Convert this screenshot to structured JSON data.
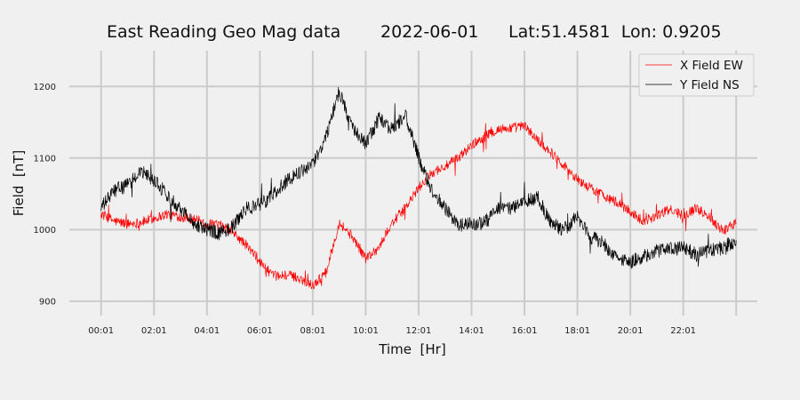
{
  "chart_data": {
    "type": "line",
    "title_parts": [
      "East Reading Geo Mag data",
      "2022-06-01",
      "Lat:51.4581  Lon: 0.9205"
    ],
    "xlabel": "Time  [Hr]",
    "ylabel": "Field  [nT]",
    "x_unit": "hours since 00:01",
    "xlim": [
      -1.2,
      24.8
    ],
    "ylim": [
      880,
      1250
    ],
    "x_ticks": [
      {
        "value": 0,
        "label": "00:01"
      },
      {
        "value": 2,
        "label": "02:01"
      },
      {
        "value": 4,
        "label": "04:01"
      },
      {
        "value": 6,
        "label": "06:01"
      },
      {
        "value": 8,
        "label": "08:01"
      },
      {
        "value": 10,
        "label": "10:01"
      },
      {
        "value": 12,
        "label": "12:01"
      },
      {
        "value": 14,
        "label": "14:01"
      },
      {
        "value": 16,
        "label": "16:01"
      },
      {
        "value": 18,
        "label": "18:01"
      },
      {
        "value": 20,
        "label": "20:01"
      },
      {
        "value": 22,
        "label": "22:01"
      }
    ],
    "x_grid": [
      0,
      2,
      4,
      6,
      8,
      10,
      12,
      14,
      16,
      18,
      20,
      22,
      24
    ],
    "y_ticks": [
      900,
      1000,
      1100,
      1200
    ],
    "grid": true,
    "legend_position": "top-right",
    "series": [
      {
        "name": "X Field EW",
        "color": "#ff0000",
        "points": [
          [
            0,
            1022
          ],
          [
            0.5,
            1012
          ],
          [
            1,
            1008
          ],
          [
            1.5,
            1010
          ],
          [
            2,
            1016
          ],
          [
            2.5,
            1022
          ],
          [
            3,
            1018
          ],
          [
            3.5,
            1015
          ],
          [
            4,
            1008
          ],
          [
            4.5,
            1006
          ],
          [
            5,
            995
          ],
          [
            5.5,
            978
          ],
          [
            6,
            955
          ],
          [
            6.5,
            935
          ],
          [
            7,
            937
          ],
          [
            7.5,
            932
          ],
          [
            8,
            922
          ],
          [
            8.5,
            940
          ],
          [
            9,
            1010
          ],
          [
            9.5,
            990
          ],
          [
            10,
            960
          ],
          [
            10.5,
            975
          ],
          [
            11,
            1010
          ],
          [
            11.5,
            1030
          ],
          [
            12,
            1058
          ],
          [
            12.5,
            1080
          ],
          [
            13,
            1088
          ],
          [
            13.5,
            1100
          ],
          [
            14,
            1118
          ],
          [
            14.5,
            1130
          ],
          [
            15,
            1140
          ],
          [
            15.5,
            1142
          ],
          [
            16,
            1145
          ],
          [
            16.5,
            1125
          ],
          [
            17,
            1108
          ],
          [
            17.5,
            1090
          ],
          [
            18,
            1070
          ],
          [
            18.5,
            1058
          ],
          [
            19,
            1048
          ],
          [
            19.5,
            1038
          ],
          [
            20,
            1025
          ],
          [
            20.5,
            1012
          ],
          [
            21,
            1020
          ],
          [
            21.5,
            1028
          ],
          [
            22,
            1020
          ],
          [
            22.5,
            1030
          ],
          [
            23,
            1018
          ],
          [
            23.5,
            998
          ],
          [
            24,
            1010
          ]
        ]
      },
      {
        "name": "Y Field NS",
        "color": "#000000",
        "points": [
          [
            0,
            1030
          ],
          [
            0.5,
            1055
          ],
          [
            1,
            1062
          ],
          [
            1.5,
            1082
          ],
          [
            2,
            1070
          ],
          [
            2.5,
            1048
          ],
          [
            3,
            1030
          ],
          [
            3.5,
            1010
          ],
          [
            4,
            1000
          ],
          [
            4.5,
            995
          ],
          [
            5,
            1005
          ],
          [
            5.5,
            1030
          ],
          [
            6,
            1035
          ],
          [
            6.5,
            1048
          ],
          [
            7,
            1068
          ],
          [
            7.5,
            1080
          ],
          [
            8,
            1090
          ],
          [
            8.5,
            1130
          ],
          [
            9,
            1195
          ],
          [
            9.5,
            1140
          ],
          [
            10,
            1120
          ],
          [
            10.5,
            1155
          ],
          [
            11,
            1140
          ],
          [
            11.5,
            1160
          ],
          [
            12,
            1100
          ],
          [
            12.5,
            1055
          ],
          [
            13,
            1030
          ],
          [
            13.5,
            1005
          ],
          [
            14,
            1008
          ],
          [
            14.5,
            1010
          ],
          [
            15,
            1028
          ],
          [
            15.5,
            1030
          ],
          [
            16,
            1040
          ],
          [
            16.5,
            1045
          ],
          [
            17,
            1008
          ],
          [
            17.5,
            1000
          ],
          [
            18,
            1018
          ],
          [
            18.5,
            990
          ],
          [
            19,
            980
          ],
          [
            19.5,
            960
          ],
          [
            20,
            955
          ],
          [
            20.5,
            962
          ],
          [
            21,
            970
          ],
          [
            21.5,
            972
          ],
          [
            22,
            975
          ],
          [
            22.5,
            965
          ],
          [
            23,
            970
          ],
          [
            23.5,
            975
          ],
          [
            24,
            985
          ]
        ]
      }
    ]
  }
}
